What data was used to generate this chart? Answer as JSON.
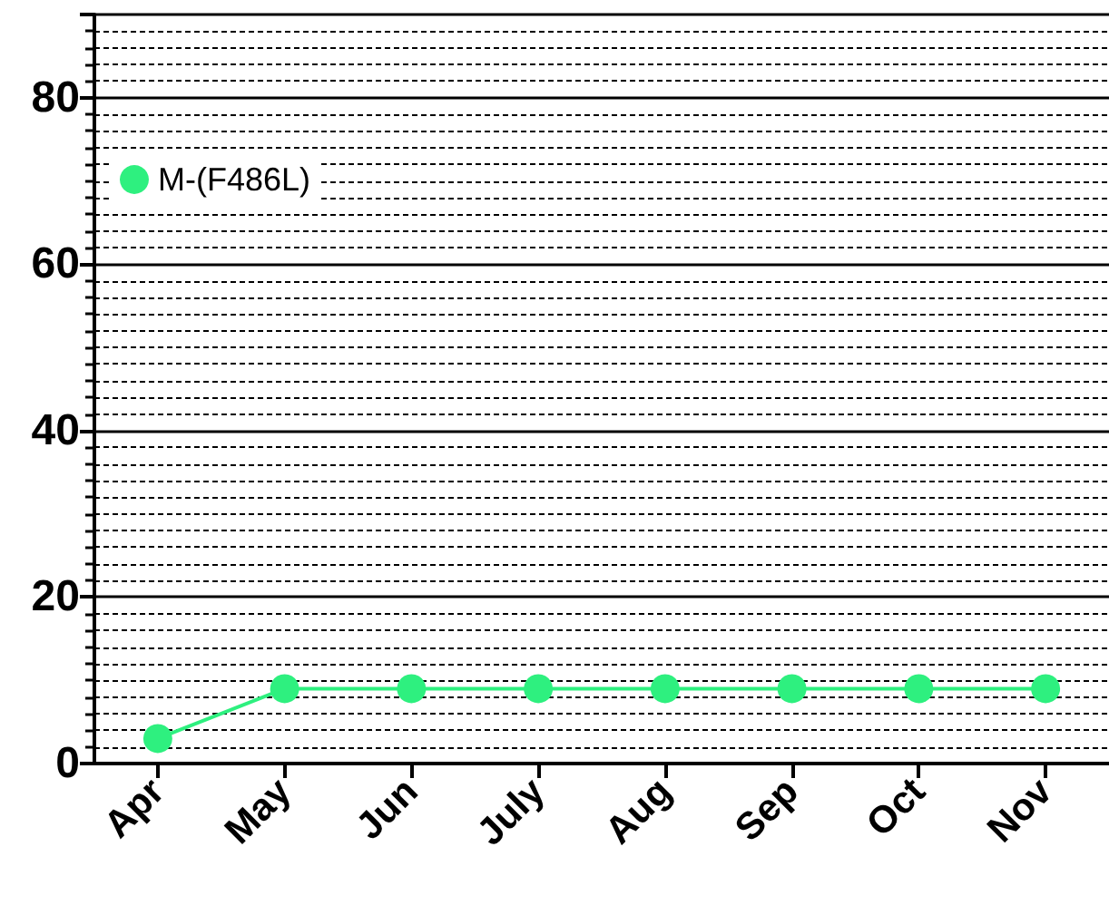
{
  "chart_data": {
    "type": "line",
    "categories": [
      "Apr",
      "May",
      "Jun",
      "July",
      "Aug",
      "Sep",
      "Oct",
      "Nov"
    ],
    "series": [
      {
        "name": "M-(F486L)",
        "color": "#2ef07f",
        "values": [
          3,
          9,
          9,
          9,
          9,
          9,
          9,
          9
        ]
      }
    ],
    "ylim": [
      0,
      90
    ],
    "yticks": [
      0,
      20,
      40,
      60,
      80
    ],
    "grid": "y",
    "legend": "top left",
    "marker": "circle",
    "line_style": "solid"
  }
}
